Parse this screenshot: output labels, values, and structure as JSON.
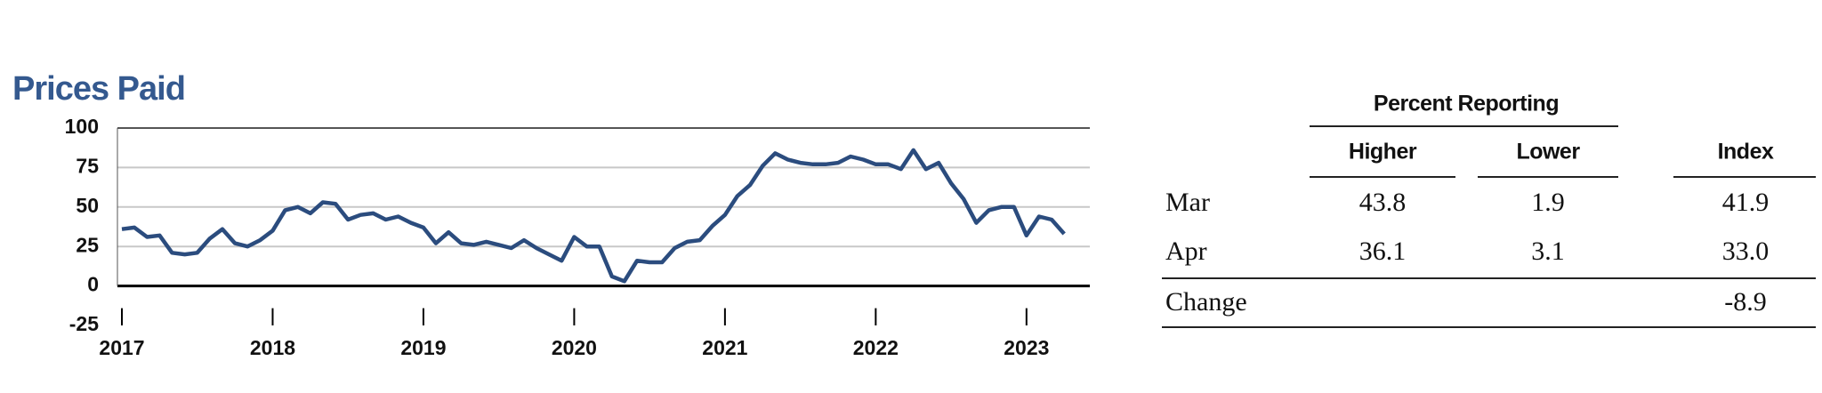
{
  "chart_data": {
    "type": "line",
    "title": "Prices Paid",
    "color": "#2b4c7e",
    "x": [
      2017,
      2017.083,
      2017.167,
      2017.25,
      2017.333,
      2017.417,
      2017.5,
      2017.583,
      2017.667,
      2017.75,
      2017.833,
      2017.917,
      2018,
      2018.083,
      2018.167,
      2018.25,
      2018.333,
      2018.417,
      2018.5,
      2018.583,
      2018.667,
      2018.75,
      2018.833,
      2018.917,
      2019,
      2019.083,
      2019.167,
      2019.25,
      2019.333,
      2019.417,
      2019.5,
      2019.583,
      2019.667,
      2019.75,
      2019.833,
      2019.917,
      2020,
      2020.083,
      2020.167,
      2020.25,
      2020.333,
      2020.417,
      2020.5,
      2020.583,
      2020.667,
      2020.75,
      2020.833,
      2020.917,
      2021,
      2021.083,
      2021.167,
      2021.25,
      2021.333,
      2021.417,
      2021.5,
      2021.583,
      2021.667,
      2021.75,
      2021.833,
      2021.917,
      2022,
      2022.083,
      2022.167,
      2022.25,
      2022.333,
      2022.417,
      2022.5,
      2022.583,
      2022.667,
      2022.75,
      2022.833,
      2022.917,
      2023,
      2023.083,
      2023.167,
      2023.25
    ],
    "values": [
      36,
      37,
      31,
      32,
      21,
      20,
      21,
      30,
      36,
      27,
      25,
      29,
      35,
      48,
      50,
      46,
      53,
      52,
      42,
      45,
      46,
      42,
      44,
      40,
      37,
      27,
      34,
      27,
      26,
      28,
      26,
      24,
      29,
      24,
      20,
      16,
      31,
      25,
      25,
      6,
      3,
      16,
      15,
      15,
      24,
      28,
      29,
      38,
      45,
      57,
      64,
      76,
      84,
      80,
      78,
      77,
      77,
      78,
      82,
      80,
      77,
      77,
      74,
      86,
      74,
      78,
      65,
      55,
      40,
      48,
      50,
      50,
      32,
      44,
      42,
      33
    ],
    "xlim": [
      2017,
      2023.42
    ],
    "xticks": [
      2017,
      2018,
      2019,
      2020,
      2021,
      2022,
      2023
    ],
    "ylim": [
      -25,
      100
    ],
    "yticks": [
      -25,
      0,
      25,
      50,
      75,
      100
    ],
    "grid": true
  },
  "table": {
    "group_header": "Percent Reporting",
    "columns": [
      "Higher",
      "Lower",
      "Index"
    ],
    "rows": [
      {
        "label": "Mar",
        "higher": "43.8",
        "lower": "1.9",
        "index": "41.9"
      },
      {
        "label": "Apr",
        "higher": "36.1",
        "lower": "3.1",
        "index": "33.0"
      },
      {
        "label": "Change",
        "index": "-8.9"
      }
    ]
  }
}
